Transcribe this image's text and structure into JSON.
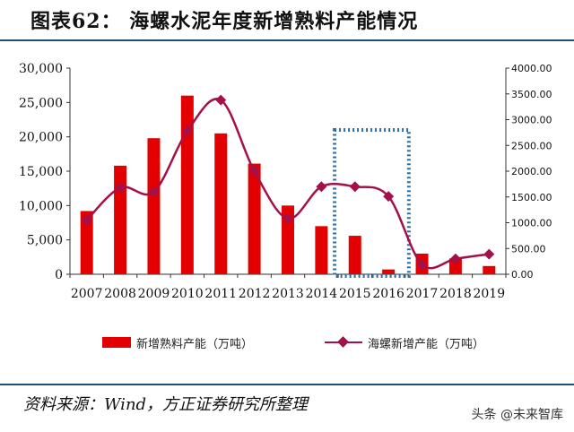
{
  "header": {
    "title": "图表62： 海螺水泥年度新增熟料产能情况"
  },
  "chart_data": {
    "type": "bar",
    "categories": [
      "2007",
      "2008",
      "2009",
      "2010",
      "2011",
      "2012",
      "2013",
      "2014",
      "2015",
      "2016",
      "2017",
      "2018",
      "2019"
    ],
    "series": [
      {
        "name": "新增熟料产能（万吨）",
        "type": "bar",
        "axis": "left",
        "color": "#e30000",
        "values": [
          9200,
          15800,
          19800,
          26000,
          20500,
          16100,
          10000,
          7000,
          5600,
          700,
          3000,
          2300,
          1200
        ]
      },
      {
        "name": "海螺新增产能（万吨）",
        "type": "line",
        "axis": "right",
        "color": "#a5104a",
        "values": [
          1050,
          1680,
          1600,
          2780,
          3380,
          2000,
          1080,
          1700,
          1700,
          1510,
          190,
          300,
          390
        ]
      }
    ],
    "y_left": {
      "range": [
        0,
        30000
      ],
      "ticks": [
        "0",
        "5,000",
        "10,000",
        "15,000",
        "20,000",
        "25,000",
        "30,000"
      ]
    },
    "y_right": {
      "range": [
        0,
        4000
      ],
      "ticks": [
        "0.00",
        "500.00",
        "1000.00",
        "1500.00",
        "2000.00",
        "2500.00",
        "3000.00",
        "3500.00",
        "4000.00"
      ]
    },
    "highlight": {
      "from": "2015",
      "to": "2016",
      "style": "dotted-box",
      "color": "#2e6da4"
    },
    "grid": false,
    "legend_position": "bottom"
  },
  "footer": {
    "source": "资料来源：Wind，方正证券研究所整理",
    "watermark": "头条 @未来智库"
  }
}
